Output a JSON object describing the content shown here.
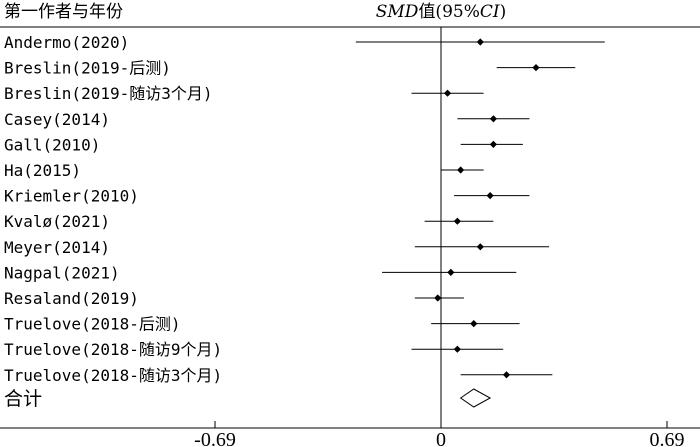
{
  "header": {
    "study_column": "第一作者与年份",
    "effect_prefix": "SMD",
    "effect_mid": "值(95%",
    "effect_ci": "CI",
    "effect_suffix": ")"
  },
  "chart_data": {
    "type": "forest",
    "xlim": [
      -0.69,
      0.69
    ],
    "x_ticks": [
      {
        "value": -0.69,
        "label": "-0.69"
      },
      {
        "value": 0,
        "label": "0"
      },
      {
        "value": 0.69,
        "label": "0.69"
      }
    ],
    "studies": [
      {
        "label": "Andermo(2020)",
        "estimate": 0.12,
        "lower": -0.26,
        "upper": 0.5
      },
      {
        "label": "Breslin(2019-后测)",
        "estimate": 0.29,
        "lower": 0.17,
        "upper": 0.41
      },
      {
        "label": "Breslin(2019-随访3个月)",
        "estimate": 0.02,
        "lower": -0.09,
        "upper": 0.13
      },
      {
        "label": "Casey(2014)",
        "estimate": 0.16,
        "lower": 0.05,
        "upper": 0.27
      },
      {
        "label": "Gall(2010)",
        "estimate": 0.16,
        "lower": 0.06,
        "upper": 0.25
      },
      {
        "label": "Ha(2015)",
        "estimate": 0.06,
        "lower": 0.0,
        "upper": 0.13
      },
      {
        "label": "Kriemler(2010)",
        "estimate": 0.15,
        "lower": 0.04,
        "upper": 0.27
      },
      {
        "label": "Kvalø(2021)",
        "estimate": 0.05,
        "lower": -0.05,
        "upper": 0.16
      },
      {
        "label": "Meyer(2014)",
        "estimate": 0.12,
        "lower": -0.08,
        "upper": 0.33
      },
      {
        "label": "Nagpal(2021)",
        "estimate": 0.03,
        "lower": -0.18,
        "upper": 0.23
      },
      {
        "label": "Resaland(2019)",
        "estimate": -0.01,
        "lower": -0.08,
        "upper": 0.07
      },
      {
        "label": "Truelove(2018-后测)",
        "estimate": 0.1,
        "lower": -0.03,
        "upper": 0.24
      },
      {
        "label": "Truelove(2018-随访9个月)",
        "estimate": 0.05,
        "lower": -0.09,
        "upper": 0.19
      },
      {
        "label": "Truelove(2018-随访3个月)",
        "estimate": 0.2,
        "lower": 0.06,
        "upper": 0.34
      }
    ],
    "total": {
      "label": "合计",
      "estimate": 0.1,
      "lower": 0.06,
      "upper": 0.15
    }
  }
}
